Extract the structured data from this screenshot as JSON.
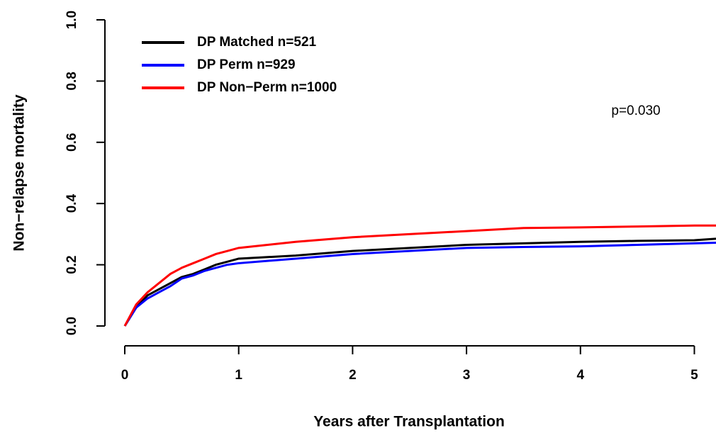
{
  "chart_data": {
    "type": "line",
    "xlabel": "Years after Transplantation",
    "ylabel": "Non−relapse mortality",
    "annotation": "p=0.030",
    "x": [
      0,
      0.1,
      0.2,
      0.3,
      0.4,
      0.5,
      0.6,
      0.7,
      0.8,
      0.9,
      1,
      1.5,
      2,
      2.5,
      3,
      3.5,
      4,
      4.5,
      5,
      5.19
    ],
    "series": [
      {
        "name": "DP Matched n=521",
        "color": "#000000",
        "values": [
          0,
          0.06,
          0.1,
          0.12,
          0.14,
          0.16,
          0.17,
          0.185,
          0.2,
          0.21,
          0.22,
          0.23,
          0.245,
          0.255,
          0.265,
          0.27,
          0.275,
          0.278,
          0.28,
          0.285
        ]
      },
      {
        "name": "DP Perm n=929",
        "color": "#0000ff",
        "values": [
          0,
          0.06,
          0.09,
          0.11,
          0.13,
          0.155,
          0.165,
          0.18,
          0.19,
          0.2,
          0.205,
          0.22,
          0.235,
          0.245,
          0.255,
          0.258,
          0.26,
          0.265,
          0.27,
          0.272
        ]
      },
      {
        "name": "DP Non−Perm n=1000",
        "color": "#ff0000",
        "values": [
          0,
          0.07,
          0.11,
          0.14,
          0.17,
          0.19,
          0.205,
          0.22,
          0.235,
          0.245,
          0.255,
          0.275,
          0.29,
          0.3,
          0.31,
          0.32,
          0.322,
          0.325,
          0.328,
          0.328
        ]
      }
    ],
    "xlim": [
      0,
      5.19
    ],
    "ylim": [
      0,
      1
    ],
    "xticks": [
      0,
      1,
      2,
      3,
      4,
      5
    ],
    "yticks": [
      {
        "value": 0,
        "label": "0.0"
      },
      0.2,
      0.4,
      0.6,
      0.8,
      {
        "value": 1,
        "label": "1.0"
      }
    ],
    "legend": "top-left"
  }
}
